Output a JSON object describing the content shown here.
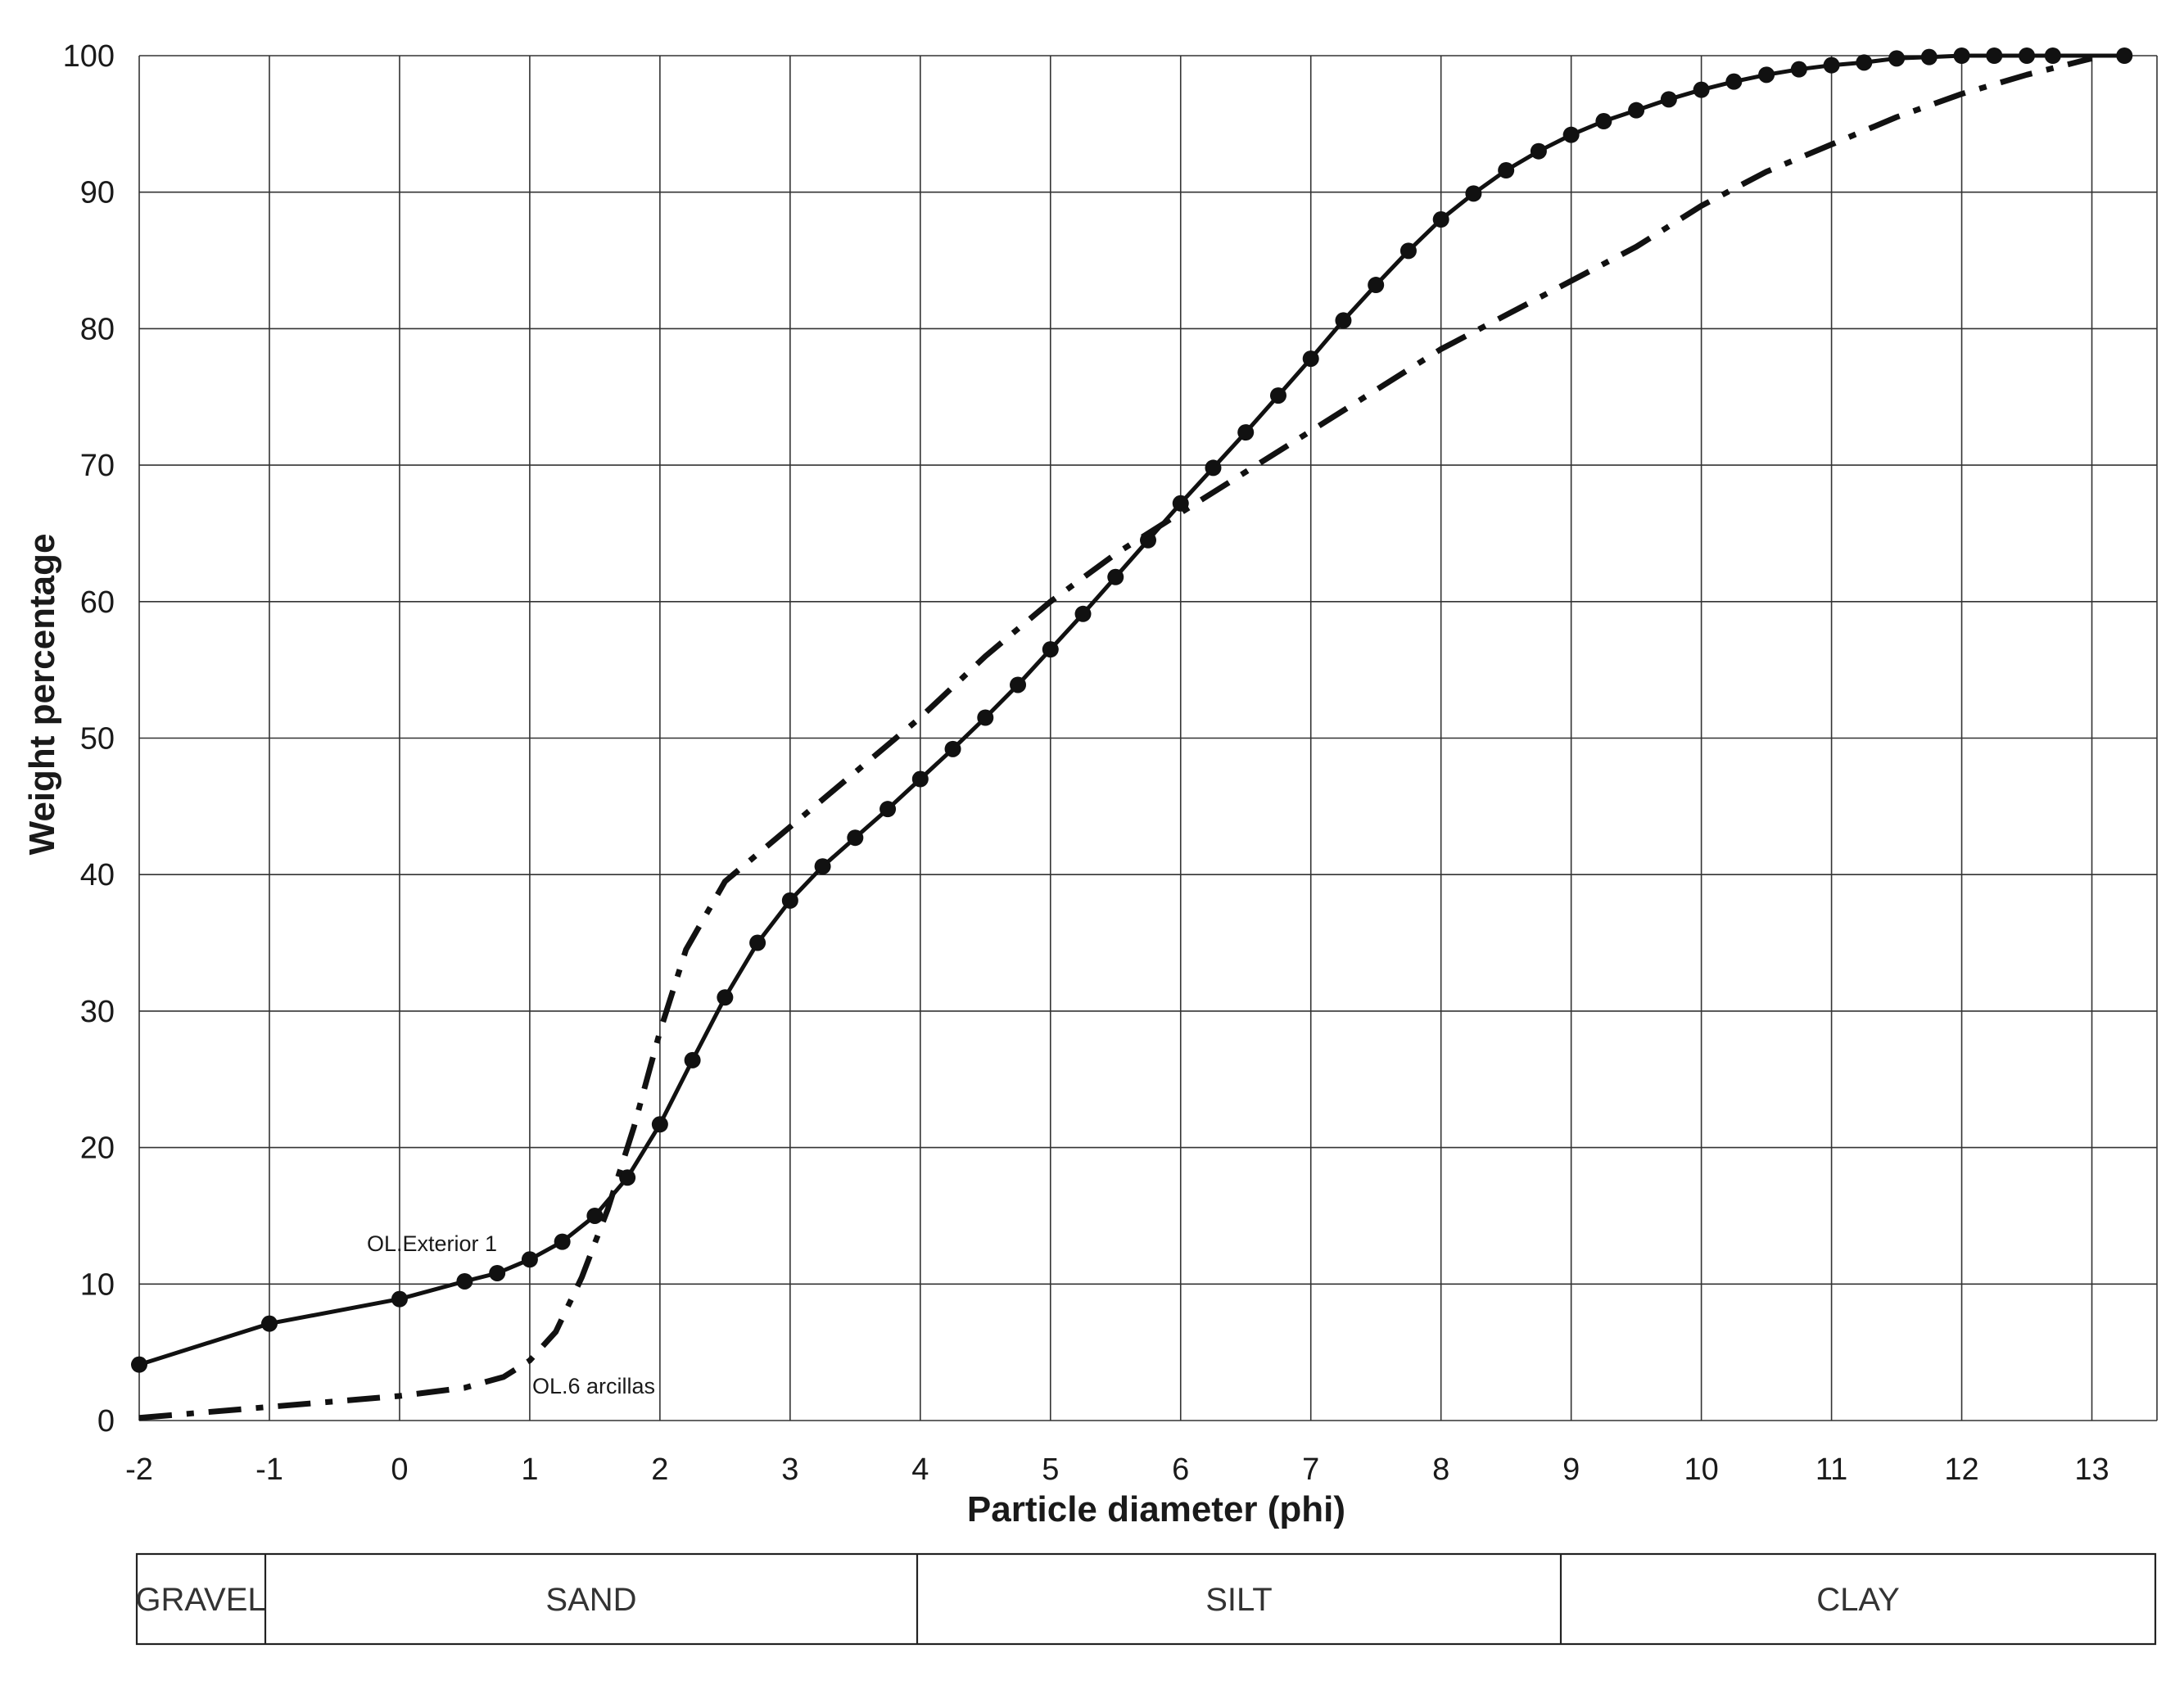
{
  "chart_data": {
    "type": "line",
    "xlabel": "Particle diameter (phi)",
    "ylabel": "Weight percentage",
    "xlim": [
      -2,
      13.5
    ],
    "ylim": [
      0,
      100
    ],
    "x_ticks": [
      -2,
      -1,
      0,
      1,
      2,
      3,
      4,
      5,
      6,
      7,
      8,
      9,
      10,
      11,
      12,
      13
    ],
    "x_tick_labels": [
      "-2",
      "-1",
      "0",
      "1",
      "2",
      "3",
      "4",
      "5",
      "6",
      "7",
      "8",
      "9",
      "10",
      "11",
      "12",
      "13"
    ],
    "y_ticks": [
      0,
      10,
      20,
      30,
      40,
      50,
      60,
      70,
      80,
      90,
      100
    ],
    "y_tick_labels": [
      "0",
      "10",
      "20",
      "30",
      "40",
      "50",
      "60",
      "70",
      "80",
      "90",
      "100"
    ],
    "grid": true,
    "series": [
      {
        "name": "OL.Exterior 1",
        "style": "solid-markers",
        "color": "#111111",
        "points": [
          [
            -2,
            4.1
          ],
          [
            -1,
            7.1
          ],
          [
            0,
            8.9
          ],
          [
            0.5,
            10.2
          ],
          [
            0.75,
            10.8
          ],
          [
            1,
            11.8
          ],
          [
            1.25,
            13.1
          ],
          [
            1.5,
            15.0
          ],
          [
            1.75,
            17.8
          ],
          [
            2,
            21.7
          ],
          [
            2.25,
            26.4
          ],
          [
            2.5,
            31.0
          ],
          [
            2.75,
            35.0
          ],
          [
            3,
            38.1
          ],
          [
            3.25,
            40.6
          ],
          [
            3.5,
            42.7
          ],
          [
            3.75,
            44.8
          ],
          [
            4,
            47.0
          ],
          [
            4.25,
            49.2
          ],
          [
            4.5,
            51.5
          ],
          [
            4.75,
            53.9
          ],
          [
            5,
            56.5
          ],
          [
            5.25,
            59.1
          ],
          [
            5.5,
            61.8
          ],
          [
            5.75,
            64.5
          ],
          [
            6,
            67.2
          ],
          [
            6.25,
            69.8
          ],
          [
            6.5,
            72.4
          ],
          [
            6.75,
            75.1
          ],
          [
            7,
            77.8
          ],
          [
            7.25,
            80.6
          ],
          [
            7.5,
            83.2
          ],
          [
            7.75,
            85.7
          ],
          [
            8,
            88.0
          ],
          [
            8.25,
            89.9
          ],
          [
            8.5,
            91.6
          ],
          [
            8.75,
            93.0
          ],
          [
            9,
            94.2
          ],
          [
            9.25,
            95.2
          ],
          [
            9.5,
            96.0
          ],
          [
            9.75,
            96.8
          ],
          [
            10,
            97.5
          ],
          [
            10.25,
            98.1
          ],
          [
            10.5,
            98.6
          ],
          [
            10.75,
            99.0
          ],
          [
            11,
            99.3
          ],
          [
            11.25,
            99.5
          ],
          [
            11.5,
            99.8
          ],
          [
            11.75,
            99.9
          ],
          [
            12,
            100
          ],
          [
            12.25,
            100
          ],
          [
            12.5,
            100
          ],
          [
            12.7,
            100
          ],
          [
            13.25,
            100
          ]
        ]
      },
      {
        "name": "OL.6 arcillas",
        "style": "dash-dot",
        "color": "#111111",
        "points": [
          [
            -2,
            0.2
          ],
          [
            -1,
            1.0
          ],
          [
            0,
            1.8
          ],
          [
            0.5,
            2.4
          ],
          [
            0.8,
            3.2
          ],
          [
            1,
            4.4
          ],
          [
            1.2,
            6.5
          ],
          [
            1.4,
            10.5
          ],
          [
            1.6,
            15.5
          ],
          [
            1.8,
            21.5
          ],
          [
            2,
            28.5
          ],
          [
            2.2,
            34.5
          ],
          [
            2.5,
            39.5
          ],
          [
            3,
            43.5
          ],
          [
            3.5,
            47.5
          ],
          [
            4,
            51.5
          ],
          [
            4.5,
            56.0
          ],
          [
            5,
            60.0
          ],
          [
            5.5,
            63.5
          ],
          [
            6,
            66.5
          ],
          [
            6.5,
            69.5
          ],
          [
            7,
            72.5
          ],
          [
            7.5,
            75.5
          ],
          [
            8,
            78.5
          ],
          [
            8.5,
            81.0
          ],
          [
            9,
            83.5
          ],
          [
            9.5,
            86.0
          ],
          [
            10,
            89.0
          ],
          [
            10.5,
            91.5
          ],
          [
            11,
            93.5
          ],
          [
            11.5,
            95.5
          ],
          [
            12,
            97.2
          ],
          [
            12.5,
            98.6
          ],
          [
            13,
            99.8
          ]
        ]
      }
    ],
    "annotations": [
      "OL.Exterior 1",
      "OL.6 arcillas"
    ],
    "size_classes": [
      "GRAVEL",
      "SAND",
      "SILT",
      "CLAY"
    ]
  }
}
